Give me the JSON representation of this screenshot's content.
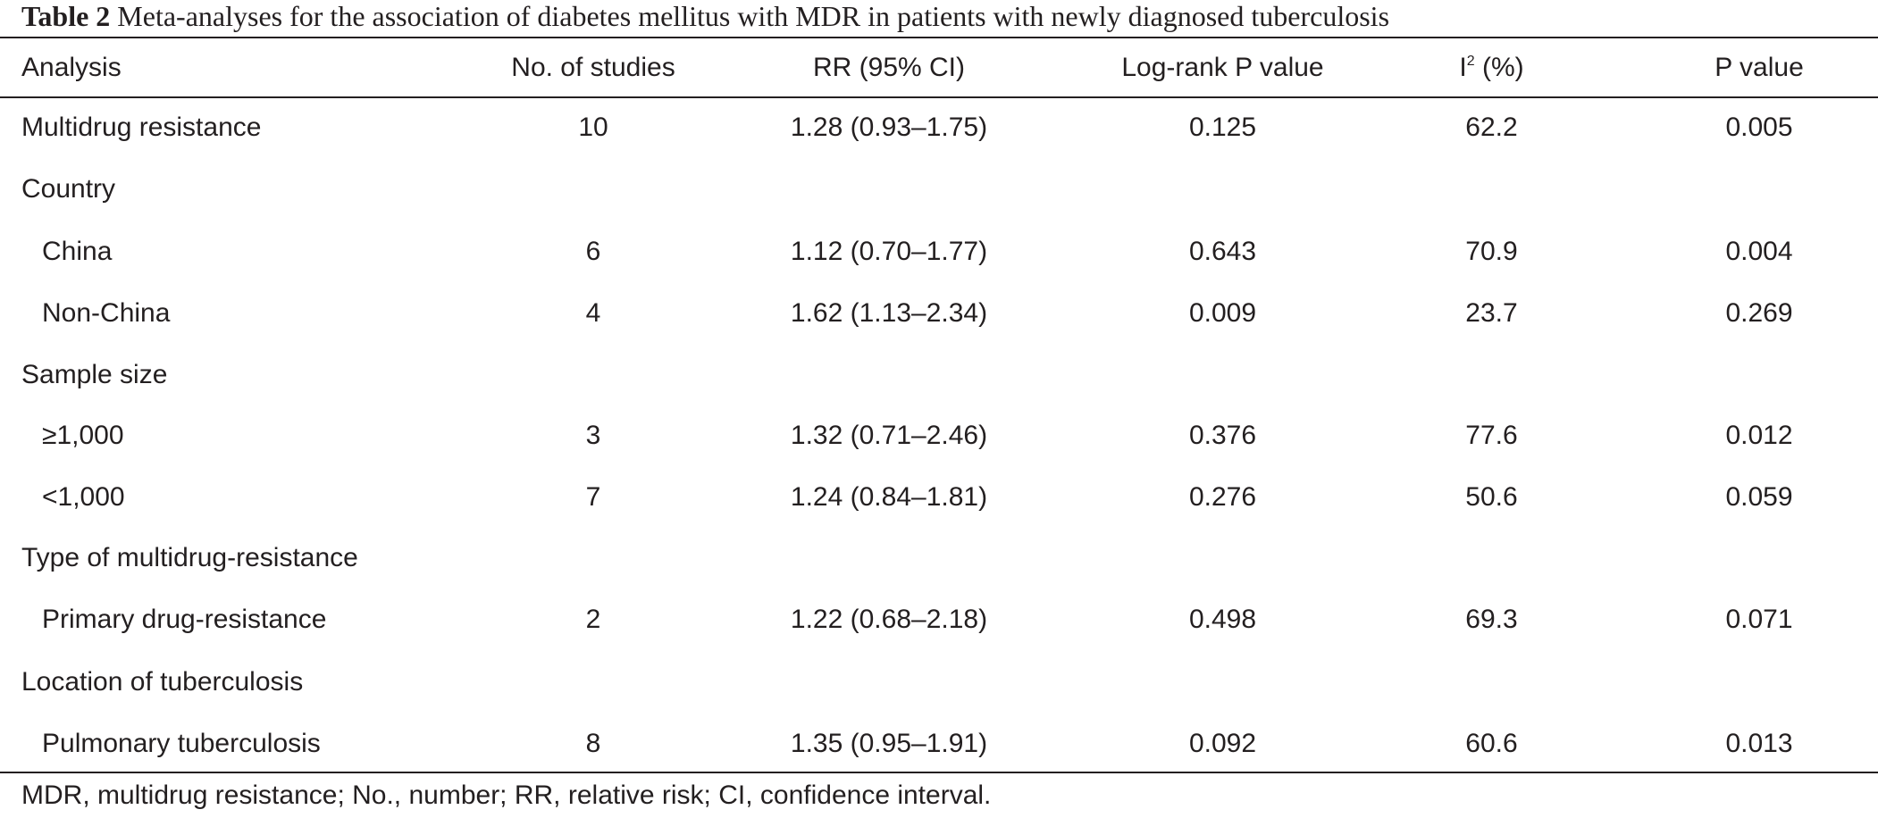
{
  "caption": {
    "label": "Table 2",
    "text": "Meta-analyses for the association of diabetes mellitus with MDR in patients with newly diagnosed tuberculosis"
  },
  "table": {
    "headers": {
      "analysis": "Analysis",
      "studies": "No. of studies",
      "rr": "RR (95% CI)",
      "logrank": "Log-rank P value",
      "i2_main": "I",
      "i2_sup": "2",
      "i2_rest": " (%)",
      "p": "P value"
    },
    "rows": [
      {
        "analysis": "Multidrug resistance",
        "studies": "10",
        "rr": "1.28 (0.93–1.75)",
        "logrank": "0.125",
        "i2": "62.2",
        "p": "0.005"
      },
      {
        "analysis": "Country",
        "studies": "",
        "rr": "",
        "logrank": "",
        "i2": "",
        "p": ""
      },
      {
        "analysis": "China",
        "studies": "6",
        "rr": "1.12 (0.70–1.77)",
        "logrank": "0.643",
        "i2": "70.9",
        "p": "0.004"
      },
      {
        "analysis": "Non-China",
        "studies": "4",
        "rr": "1.62 (1.13–2.34)",
        "logrank": "0.009",
        "i2": "23.7",
        "p": "0.269"
      },
      {
        "analysis": "Sample size",
        "studies": "",
        "rr": "",
        "logrank": "",
        "i2": "",
        "p": ""
      },
      {
        "analysis": "≥1,000",
        "studies": "3",
        "rr": "1.32 (0.71–2.46)",
        "logrank": "0.376",
        "i2": "77.6",
        "p": "0.012"
      },
      {
        "analysis": "<1,000",
        "studies": "7",
        "rr": "1.24 (0.84–1.81)",
        "logrank": "0.276",
        "i2": "50.6",
        "p": "0.059"
      },
      {
        "analysis": "Type of multidrug-resistance",
        "studies": "",
        "rr": "",
        "logrank": "",
        "i2": "",
        "p": ""
      },
      {
        "analysis": "Primary drug-resistance",
        "studies": "2",
        "rr": "1.22 (0.68–2.18)",
        "logrank": "0.498",
        "i2": "69.3",
        "p": "0.071"
      },
      {
        "analysis": "Location of tuberculosis",
        "studies": "",
        "rr": "",
        "logrank": "",
        "i2": "",
        "p": ""
      },
      {
        "analysis": "Pulmonary tuberculosis",
        "studies": "8",
        "rr": "1.35 (0.95–1.91)",
        "logrank": "0.092",
        "i2": "60.6",
        "p": "0.013"
      }
    ]
  },
  "footnote": "MDR, multidrug resistance; No., number; RR, relative risk; CI, confidence interval."
}
